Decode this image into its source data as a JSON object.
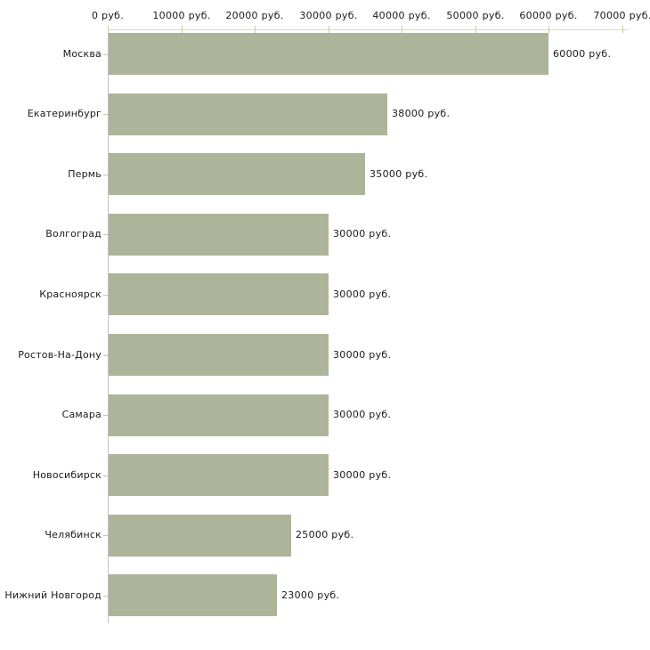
{
  "chart_data": {
    "type": "bar",
    "orientation": "horizontal",
    "title": "",
    "xlabel": "",
    "ylabel": "",
    "categories": [
      "Москва",
      "Екатеринбург",
      "Пермь",
      "Волгоград",
      "Красноярск",
      "Ростов-На-Дону",
      "Самара",
      "Новосибирск",
      "Челябинск",
      "Нижний Новгород"
    ],
    "values": [
      60000,
      38000,
      35000,
      30000,
      30000,
      30000,
      30000,
      30000,
      25000,
      23000
    ],
    "data_labels": [
      "60000 руб.",
      "38000 руб.",
      "35000 руб.",
      "30000 руб.",
      "30000 руб.",
      "30000 руб.",
      "30000 руб.",
      "30000 руб.",
      "25000 руб.",
      "23000 руб."
    ],
    "x_axis": {
      "min": 0,
      "max": 70000,
      "tick_step": 10000,
      "position": "top",
      "tick_labels": [
        "0 руб.",
        "10000 руб.",
        "20000 руб.",
        "30000 руб.",
        "40000 руб.",
        "50000 руб.",
        "60000 руб.",
        "70000 руб."
      ]
    },
    "grid": false,
    "legend": false,
    "colors": {
      "bar": "#acb49a",
      "x_axis_line": "#d9d9c1",
      "tick_mark": "#c9c9a4",
      "y_axis_line": "#c3c3c3",
      "label_text": "#1a1a1a",
      "background": "#ffffff"
    }
  }
}
